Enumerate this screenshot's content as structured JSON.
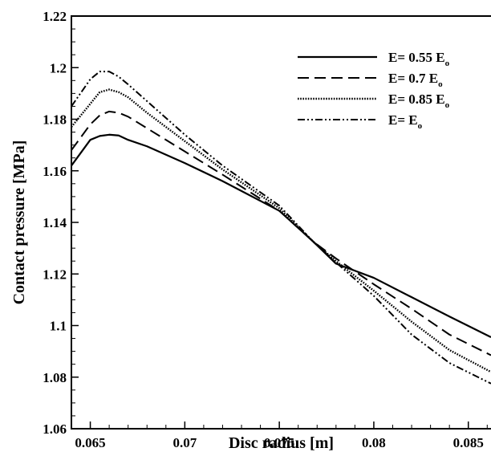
{
  "chart_data": {
    "type": "line",
    "title": "",
    "xlabel": "Disc radius [m]",
    "ylabel": "Contact pressure [MPa]",
    "xlim": [
      0.064,
      0.0862
    ],
    "ylim": [
      1.06,
      1.22
    ],
    "x_ticks": [
      "0.065",
      "0.07",
      "0.075",
      "0.08",
      "0.085"
    ],
    "x_tick_values": [
      0.065,
      0.07,
      0.075,
      0.08,
      0.085
    ],
    "y_ticks": [
      "1.06",
      "1.08",
      "1.1",
      "1.12",
      "1.14",
      "1.16",
      "1.18",
      "1.2",
      "1.22"
    ],
    "y_tick_values": [
      1.06,
      1.08,
      1.1,
      1.12,
      1.14,
      1.16,
      1.18,
      1.2,
      1.22
    ],
    "grid": false,
    "legend_position": "top-right",
    "x": [
      0.064,
      0.065,
      0.0655,
      0.066,
      0.0665,
      0.067,
      0.068,
      0.07,
      0.072,
      0.075,
      0.0768,
      0.078,
      0.08,
      0.082,
      0.084,
      0.0862
    ],
    "series": [
      {
        "name": "E= 0.55 E",
        "name_sub": "o",
        "dash": "solid",
        "values": [
          1.162,
          1.172,
          1.1735,
          1.174,
          1.1737,
          1.172,
          1.1695,
          1.163,
          1.156,
          1.1445,
          1.1325,
          1.124,
          1.1185,
          1.111,
          1.1035,
          1.0955
        ]
      },
      {
        "name": "E= 0.7 E",
        "name_sub": "o",
        "dash": "dashed",
        "values": [
          1.168,
          1.178,
          1.1815,
          1.183,
          1.1825,
          1.181,
          1.1765,
          1.1675,
          1.1585,
          1.1445,
          1.1325,
          1.126,
          1.116,
          1.1065,
          1.0965,
          1.0885
        ]
      },
      {
        "name": "E= 0.85 E",
        "name_sub": "o",
        "dash": "dotted",
        "values": [
          1.177,
          1.186,
          1.1905,
          1.1915,
          1.1905,
          1.1885,
          1.1825,
          1.1715,
          1.1605,
          1.1455,
          1.1325,
          1.125,
          1.1135,
          1.1015,
          1.0905,
          1.082
        ]
      },
      {
        "name": "E= E",
        "name_sub": "o",
        "dash": "dash-dot-dot",
        "values": [
          1.185,
          1.1955,
          1.1985,
          1.1985,
          1.1965,
          1.1935,
          1.187,
          1.174,
          1.162,
          1.1465,
          1.1325,
          1.1245,
          1.1115,
          1.0965,
          1.0855,
          1.0775
        ]
      }
    ]
  }
}
